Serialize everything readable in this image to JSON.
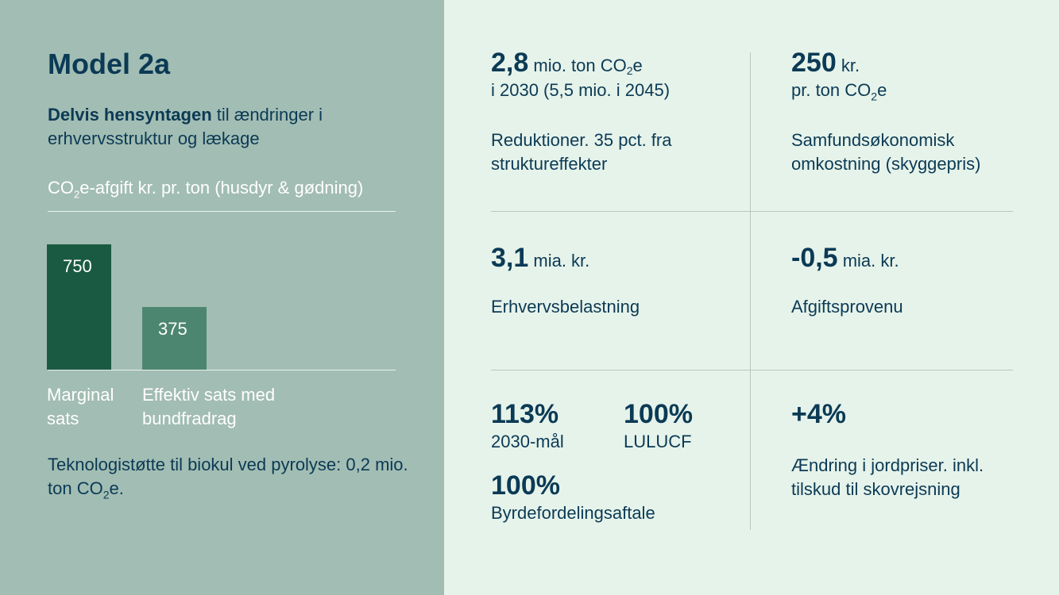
{
  "model_title": "Model 2a",
  "subtitle": {
    "bold": "Delvis hensyntagen",
    "rest": " til ændringer i erhvervsstruktur og lækage"
  },
  "chart_title_pre": "CO",
  "chart_title_sub": "2",
  "chart_title_post": "e-afgift kr. pr. ton (husdyr & gødning)",
  "chart_data": {
    "type": "bar",
    "title": "CO2e-afgift kr. pr. ton (husdyr & gødning)",
    "categories": [
      "Marginal sats",
      "Effektiv sats med bundfradrag"
    ],
    "values": [
      750,
      375
    ],
    "colors": [
      "#1a5a43",
      "#4d8670"
    ],
    "ylim": [
      0,
      750
    ],
    "grid": false
  },
  "cat_labels": [
    {
      "l1": "Marginal",
      "l2": "sats"
    },
    {
      "l1": "Effektiv sats med",
      "l2": "bundfradrag"
    }
  ],
  "tech_note": {
    "pre": "Teknologistøtte til biokul ved pyrolyse: 0,2 mio. ton CO",
    "sub": "2",
    "post": "e."
  },
  "kpis": {
    "reduction": {
      "value": "2,8",
      "unit_pre": " mio. ton CO",
      "unit_sub": "2",
      "unit_post": "e",
      "line2": "i 2030 (5,5 mio. i 2045)",
      "desc1": "Reduktioner. 35 pct. fra",
      "desc2": "struktureffekter"
    },
    "cost": {
      "value": "250",
      "unit": " kr.",
      "line2_pre": "pr. ton CO",
      "line2_sub": "2",
      "line2_post": "e",
      "desc1": "Samfundsøkonomisk",
      "desc2": "omkostning (skyggepris)"
    },
    "burden": {
      "value": "3,1",
      "unit": " mia. kr.",
      "desc": "Erhvervsbelastning"
    },
    "revenue": {
      "value": "-0,5",
      "unit": " mia. kr.",
      "desc": "Afgiftsprovenu"
    },
    "goal2030": {
      "value": "113%",
      "desc": "2030-mål"
    },
    "lulucf": {
      "value": "100%",
      "desc": "LULUCF"
    },
    "burden_sharing": {
      "value": "100%",
      "desc": "Byrdefordelingsaftale"
    },
    "land_price": {
      "value": "+4%",
      "desc1": "Ændring i jordpriser. inkl.",
      "desc2": "tilskud til skovrejsning"
    }
  }
}
